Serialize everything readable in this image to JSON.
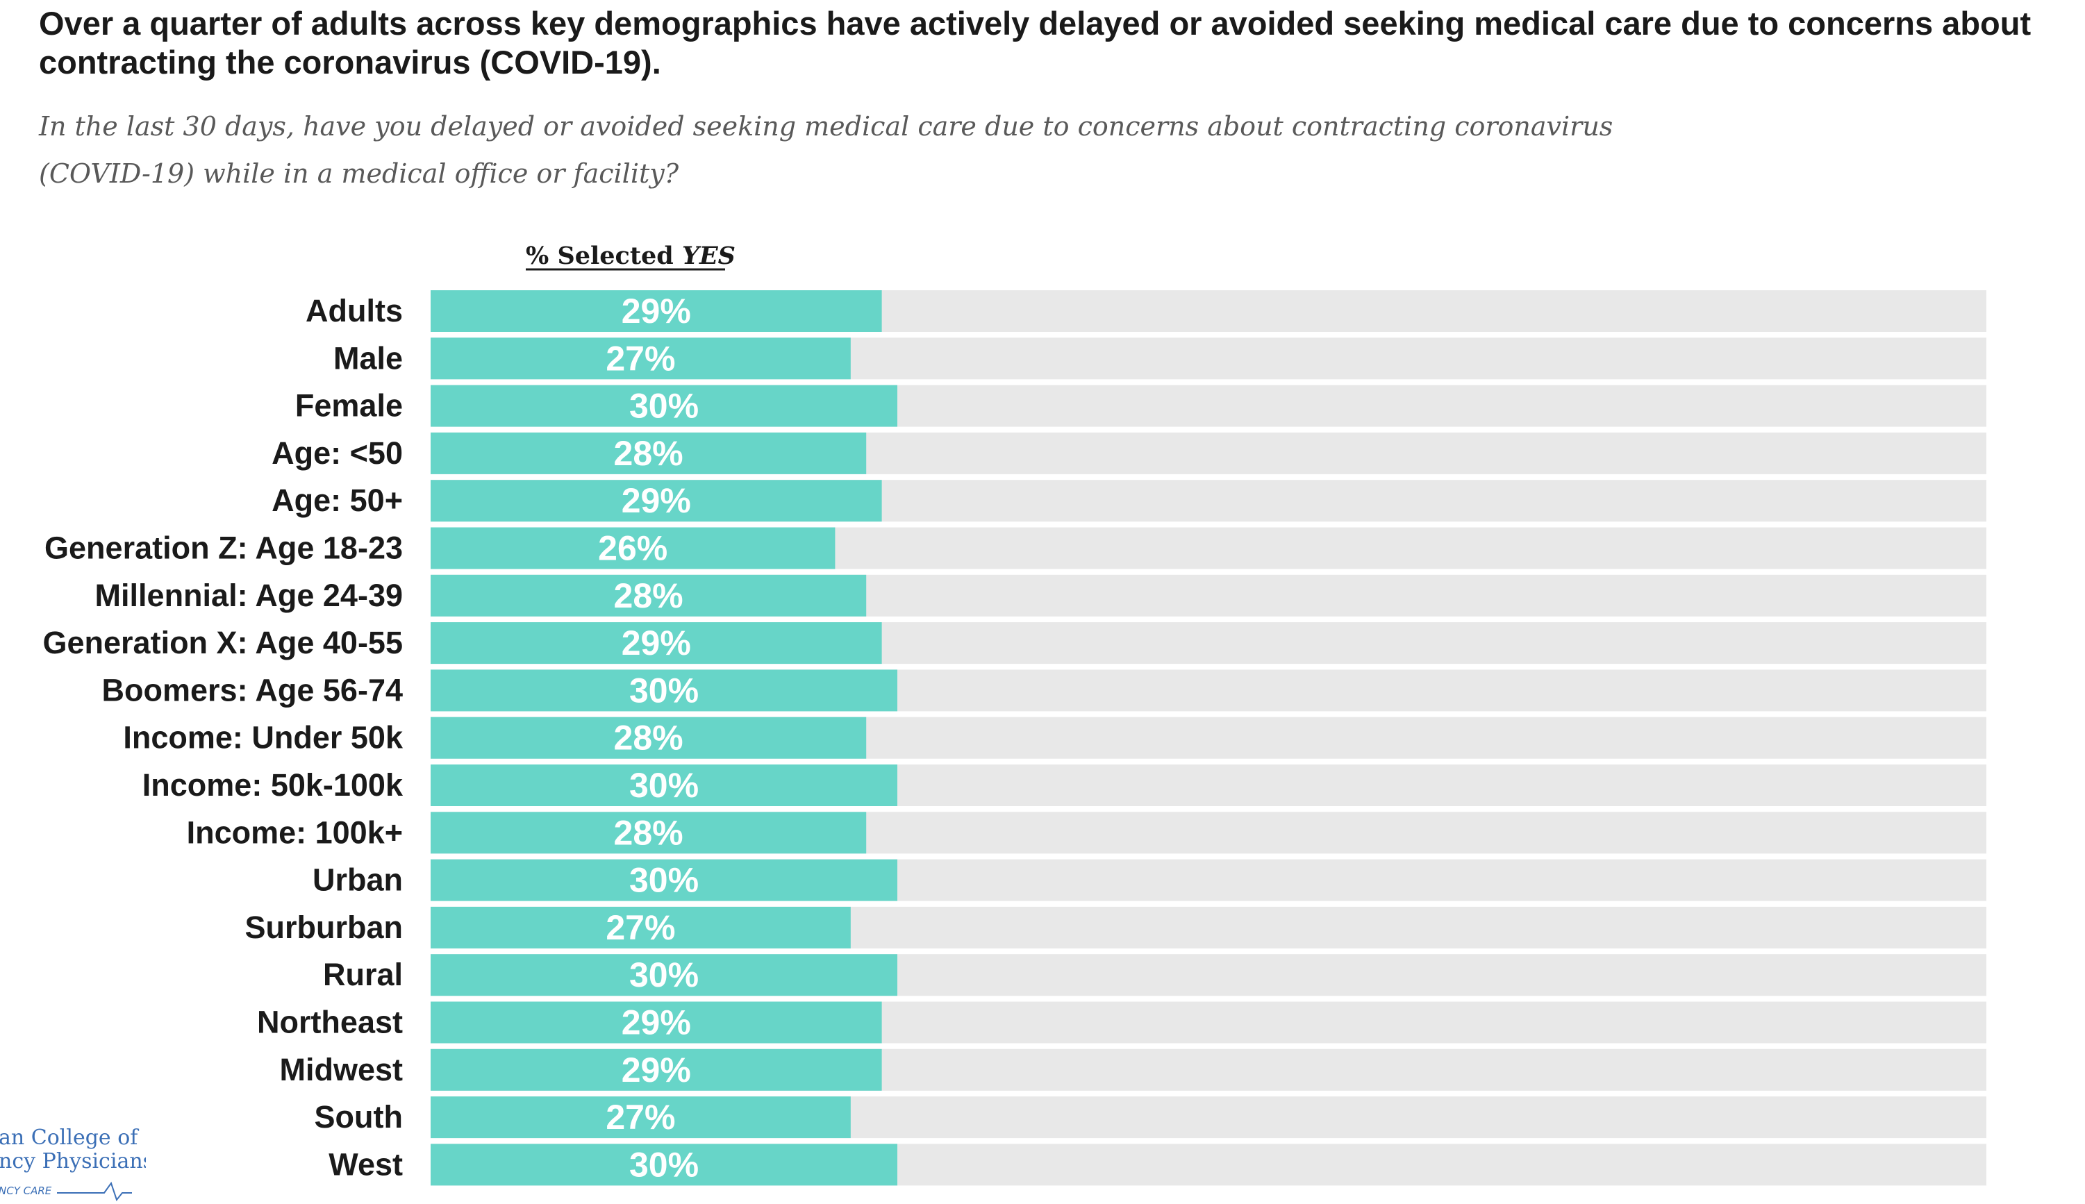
{
  "headline": "Over a quarter of adults across key demographics have actively delayed or avoided seeking medical care due to concerns about contracting the coronavirus (COVID-19).",
  "question_line1": "In the last 30 days, have you delayed or avoided seeking medical care due to concerns about contracting coronavirus",
  "question_line2": "(COVID-19) while in a medical office or facility?",
  "column_header_prefix": "% Selected ",
  "column_header_emphasis": "YES",
  "colors": {
    "bar": "#67D5C8",
    "track": "#E8E8E8",
    "label": "#1a1a1a",
    "value_label": "#ffffff",
    "logo": "#3b6fb6"
  },
  "logo": {
    "line1": "an College of",
    "line2": "ncy Physicians",
    "line3": "NCY CARE"
  },
  "chart_data": {
    "type": "bar",
    "orientation": "horizontal",
    "title": "% Selected YES",
    "xlim": [
      0,
      100
    ],
    "grid": false,
    "legend": "none",
    "categories": [
      "Adults",
      "Male",
      "Female",
      "Age: <50",
      "Age: 50+",
      "Generation Z: Age 18-23",
      "Millennial: Age 24-39",
      "Generation X: Age 40-55",
      "Boomers: Age 56-74",
      "Income: Under 50k",
      "Income: 50k-100k",
      "Income: 100k+",
      "Urban",
      "Surburban",
      "Rural",
      "Northeast",
      "Midwest",
      "South",
      "West"
    ],
    "values": [
      29,
      27,
      30,
      28,
      29,
      26,
      28,
      29,
      30,
      28,
      30,
      28,
      30,
      27,
      30,
      29,
      29,
      27,
      30
    ],
    "value_labels": [
      "29%",
      "27%",
      "30%",
      "28%",
      "29%",
      "26%",
      "28%",
      "29%",
      "30%",
      "28%",
      "30%",
      "28%",
      "30%",
      "27%",
      "30%",
      "29%",
      "29%",
      "27%",
      "30%"
    ]
  }
}
